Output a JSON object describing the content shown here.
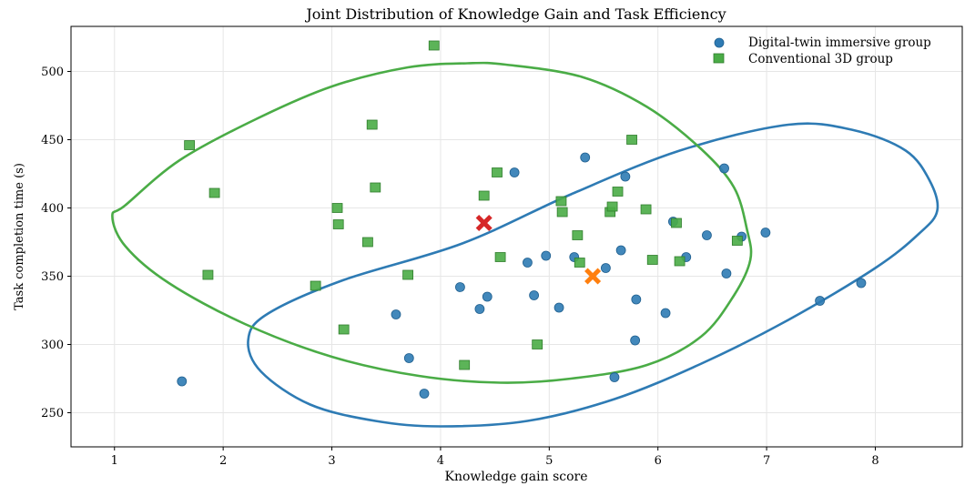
{
  "chart_data": {
    "type": "scatter",
    "title": "Joint Distribution of Knowledge Gain and Task Efficiency",
    "xlabel": "Knowledge gain score",
    "ylabel": "Task completion time (s)",
    "xlim": [
      0.6,
      8.8
    ],
    "ylim": [
      225,
      533
    ],
    "xticks": [
      1,
      2,
      3,
      4,
      5,
      6,
      7,
      8
    ],
    "yticks": [
      250,
      300,
      350,
      400,
      450,
      500
    ],
    "grid": true,
    "legend_position": "top-right",
    "series": [
      {
        "name": "Digital-twin immersive group",
        "color": "#2e7bb4",
        "marker": "circle",
        "points": [
          [
            1.62,
            273
          ],
          [
            3.59,
            322
          ],
          [
            3.71,
            290
          ],
          [
            3.85,
            264
          ],
          [
            4.18,
            342
          ],
          [
            4.36,
            326
          ],
          [
            4.43,
            335
          ],
          [
            4.68,
            426
          ],
          [
            4.8,
            360
          ],
          [
            4.86,
            336
          ],
          [
            4.97,
            365
          ],
          [
            5.09,
            327
          ],
          [
            5.23,
            364
          ],
          [
            5.33,
            437
          ],
          [
            5.52,
            356
          ],
          [
            5.6,
            276
          ],
          [
            5.66,
            369
          ],
          [
            5.7,
            423
          ],
          [
            5.79,
            303
          ],
          [
            5.8,
            333
          ],
          [
            6.07,
            323
          ],
          [
            6.14,
            390
          ],
          [
            6.26,
            364
          ],
          [
            6.45,
            380
          ],
          [
            6.61,
            429
          ],
          [
            6.63,
            352
          ],
          [
            6.77,
            379
          ],
          [
            6.99,
            382
          ],
          [
            7.49,
            332
          ],
          [
            7.87,
            345
          ]
        ]
      },
      {
        "name": "Conventional 3D group",
        "color": "#4aac46",
        "marker": "square",
        "points": [
          [
            1.69,
            446
          ],
          [
            1.86,
            351
          ],
          [
            1.92,
            411
          ],
          [
            2.85,
            343
          ],
          [
            3.05,
            400
          ],
          [
            3.06,
            388
          ],
          [
            3.11,
            311
          ],
          [
            3.33,
            375
          ],
          [
            3.37,
            461
          ],
          [
            3.4,
            415
          ],
          [
            3.7,
            351
          ],
          [
            3.94,
            519
          ],
          [
            4.22,
            285
          ],
          [
            4.4,
            409
          ],
          [
            4.52,
            426
          ],
          [
            4.55,
            364
          ],
          [
            4.89,
            300
          ],
          [
            5.11,
            405
          ],
          [
            5.12,
            397
          ],
          [
            5.26,
            380
          ],
          [
            5.28,
            360
          ],
          [
            5.56,
            397
          ],
          [
            5.58,
            401
          ],
          [
            5.63,
            412
          ],
          [
            5.76,
            450
          ],
          [
            5.89,
            399
          ],
          [
            5.95,
            362
          ],
          [
            6.17,
            389
          ],
          [
            6.2,
            361
          ],
          [
            6.73,
            376
          ]
        ]
      }
    ],
    "centroids": [
      {
        "group": "Digital-twin immersive group",
        "x": 5.4,
        "y": 350,
        "color": "#ff7f0e",
        "marker": "x"
      },
      {
        "group": "Conventional 3D group",
        "x": 4.4,
        "y": 389,
        "color": "#d62728",
        "marker": "x"
      }
    ],
    "ellipses": [
      {
        "group": "Digital-twin immersive group",
        "color": "#2e7bb4",
        "path": [
          [
            8.57,
            398
          ],
          [
            8.5,
            420
          ],
          [
            8.28,
            442
          ],
          [
            7.8,
            457
          ],
          [
            7.2,
            461
          ],
          [
            6.2,
            442
          ],
          [
            5.2,
            410
          ],
          [
            4.2,
            374
          ],
          [
            3.1,
            347
          ],
          [
            2.4,
            322
          ],
          [
            2.23,
            303
          ],
          [
            2.35,
            280
          ],
          [
            2.8,
            256
          ],
          [
            3.4,
            244
          ],
          [
            4.0,
            240
          ],
          [
            4.8,
            244
          ],
          [
            5.6,
            260
          ],
          [
            6.4,
            286
          ],
          [
            7.2,
            318
          ],
          [
            8.0,
            356
          ],
          [
            8.4,
            381
          ],
          [
            8.57,
            398
          ]
        ]
      },
      {
        "group": "Conventional 3D group",
        "color": "#4aac46",
        "path": [
          [
            6.82,
            384
          ],
          [
            6.7,
            415
          ],
          [
            6.4,
            443
          ],
          [
            5.9,
            474
          ],
          [
            5.3,
            496
          ],
          [
            4.6,
            505
          ],
          [
            4.25,
            506
          ],
          [
            3.7,
            503
          ],
          [
            3.0,
            489
          ],
          [
            2.3,
            465
          ],
          [
            1.6,
            435
          ],
          [
            1.1,
            402
          ],
          [
            0.98,
            394
          ],
          [
            1.1,
            372
          ],
          [
            1.5,
            345
          ],
          [
            2.2,
            315
          ],
          [
            3.0,
            291
          ],
          [
            3.8,
            277
          ],
          [
            4.55,
            272
          ],
          [
            5.2,
            275
          ],
          [
            5.9,
            285
          ],
          [
            6.4,
            306
          ],
          [
            6.7,
            336
          ],
          [
            6.85,
            362
          ],
          [
            6.82,
            384
          ]
        ]
      }
    ]
  }
}
